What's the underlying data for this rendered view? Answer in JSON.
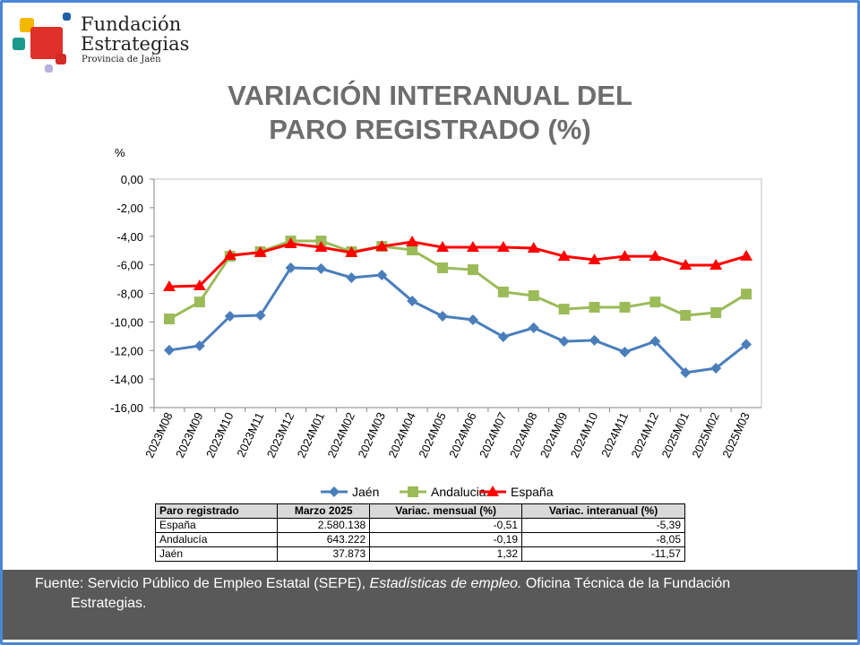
{
  "logo": {
    "line1": "Fundación",
    "line2": "Estrategias",
    "line3": "Provincia de Jaén"
  },
  "title": {
    "line1": "VARIACIÓN INTERANUAL DEL",
    "line2": "PARO REGISTRADO (%)"
  },
  "chart_data": {
    "type": "line",
    "ylabel": "%",
    "ylim": [
      -16,
      0
    ],
    "yticks": [
      "0,00",
      "-2,00",
      "-4,00",
      "-6,00",
      "-8,00",
      "-10,00",
      "-12,00",
      "-14,00",
      "-16,00"
    ],
    "ytick_values": [
      0,
      -2,
      -4,
      -6,
      -8,
      -10,
      -12,
      -14,
      -16
    ],
    "grid": false,
    "legend": "bottom",
    "categories": [
      "2023M08",
      "2023M09",
      "2023M10",
      "2023M11",
      "2023M12",
      "2024M01",
      "2024M02",
      "2024M03",
      "2024M04",
      "2024M05",
      "2024M06",
      "2024M07",
      "2024M08",
      "2024M09",
      "2024M10",
      "2024M11",
      "2024M12",
      "2025M01",
      "2025M02",
      "2025M03"
    ],
    "series": [
      {
        "name": "Jaén",
        "color": "#4a7ebb",
        "marker": "diamond",
        "values": [
          -11.98,
          -11.67,
          -9.6,
          -9.54,
          -6.21,
          -6.27,
          -6.9,
          -6.71,
          -8.53,
          -9.6,
          -9.85,
          -11.04,
          -10.41,
          -11.36,
          -11.29,
          -12.11,
          -11.36,
          -13.55,
          -13.24,
          -11.57
        ]
      },
      {
        "name": "Andalucia",
        "color": "#9bbb59",
        "marker": "square",
        "values": [
          -9.79,
          -8.6,
          -5.4,
          -5.08,
          -4.33,
          -4.33,
          -5.08,
          -4.71,
          -4.96,
          -6.21,
          -6.34,
          -7.9,
          -8.16,
          -9.1,
          -8.97,
          -8.97,
          -8.6,
          -9.54,
          -9.35,
          -8.05
        ]
      },
      {
        "name": "España",
        "color": "#ff0000",
        "marker": "triangle",
        "values": [
          -7.53,
          -7.47,
          -5.33,
          -5.14,
          -4.52,
          -4.77,
          -5.14,
          -4.71,
          -4.39,
          -4.77,
          -4.77,
          -4.77,
          -4.83,
          -5.4,
          -5.65,
          -5.4,
          -5.4,
          -6.02,
          -6.02,
          -5.39
        ]
      }
    ]
  },
  "table": {
    "headers": [
      "Paro registrado",
      "Marzo 2025",
      "Variac. mensual (%)",
      "Variac. interanual (%)"
    ],
    "rows": [
      [
        "España",
        "2.580.138",
        "-0,51",
        "-5,39"
      ],
      [
        "Andalucía",
        "643.222",
        "-0,19",
        "-8,05"
      ],
      [
        "Jaén",
        "37.873",
        "1,32",
        "-11,57"
      ]
    ]
  },
  "footer": {
    "pre": "Fuente: Servicio Público de Empleo Estatal (SEPE), ",
    "italic": "Estadísticas de empleo.",
    "post": " Oficina Técnica de la Fundación",
    "line2": "Estrategias."
  }
}
